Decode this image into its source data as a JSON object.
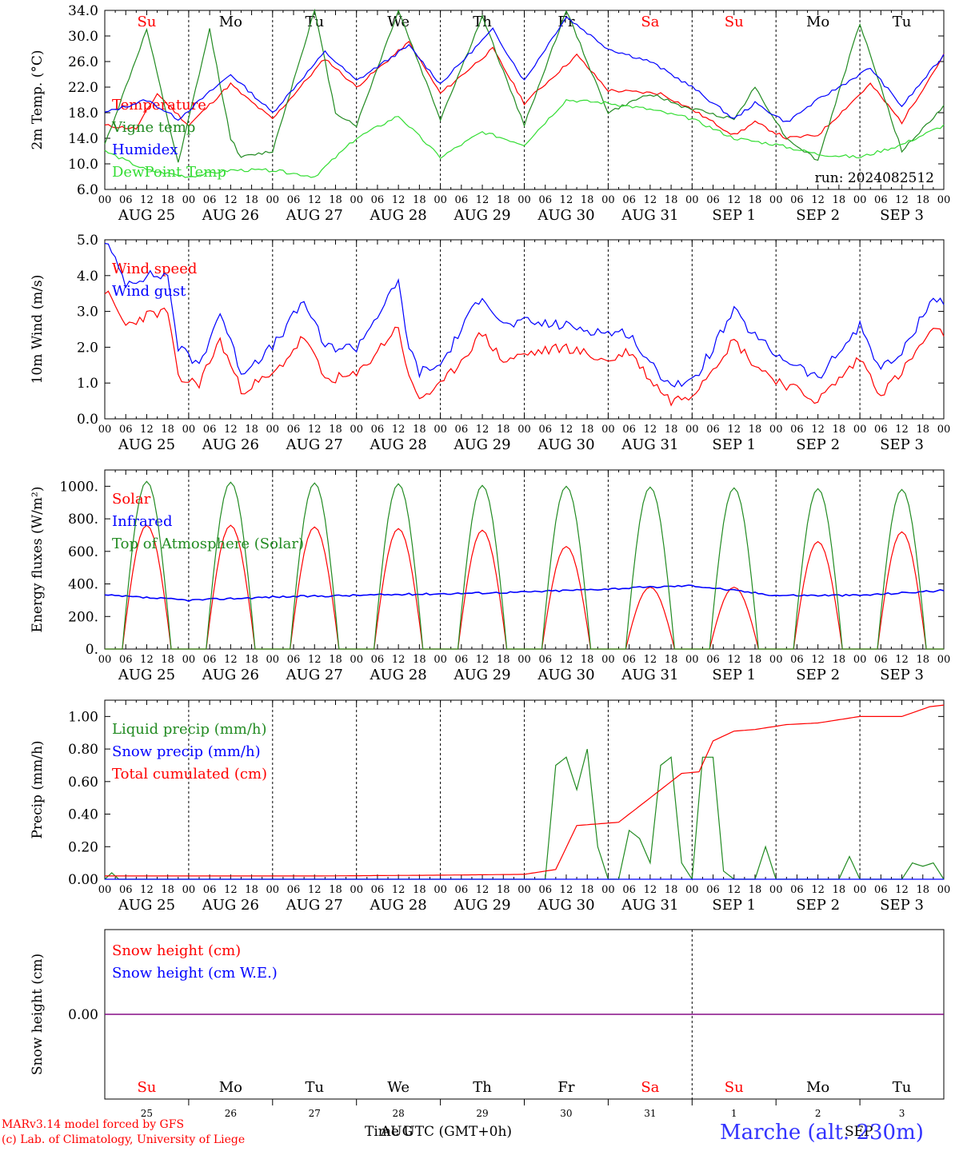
{
  "run_label": "run: 2024082512",
  "colors": {
    "red": "#ff0000",
    "green": "#228b22",
    "blue": "#0000ff",
    "lightgreen": "#33dd33",
    "purple": "#800080"
  },
  "days": {
    "weekday": [
      "Su",
      "Mo",
      "Tu",
      "We",
      "Th",
      "Fr",
      "Sa",
      "Su",
      "Mo",
      "Tu"
    ],
    "weekend_flags": [
      true,
      false,
      false,
      false,
      false,
      false,
      true,
      true,
      false,
      false
    ],
    "date_labels": [
      "AUG 25",
      "AUG 26",
      "AUG 27",
      "AUG 28",
      "AUG 29",
      "AUG 30",
      "AUG 31",
      "SEP  1",
      "SEP  2",
      "SEP  3"
    ],
    "day_numbers": [
      "25",
      "26",
      "27",
      "28",
      "29",
      "30",
      "31",
      "1",
      "2",
      "3"
    ],
    "hour_ticks": [
      "00",
      "06",
      "12",
      "18"
    ]
  },
  "chart_data": [
    {
      "type": "line",
      "ylabel": "2m Temp. (°C)",
      "ylim": [
        6.0,
        34.0
      ],
      "yticks": [
        6.0,
        10.0,
        14.0,
        18.0,
        22.0,
        26.0,
        30.0,
        34.0
      ],
      "ytick_labels": [
        "6.0",
        "10.0",
        "14.0",
        "18.0",
        "22.0",
        "26.0",
        "30.0",
        "34.0"
      ],
      "series": [
        {
          "name": "Temperature",
          "color": "red",
          "x": [
            0,
            9,
            15,
            24,
            36,
            39,
            48,
            63,
            72,
            87,
            96,
            111,
            120,
            135,
            144,
            159,
            168,
            180,
            186,
            195,
            204,
            219,
            228,
            240
          ],
          "values": [
            16,
            15.5,
            21,
            16,
            22.5,
            21,
            17,
            26.5,
            22,
            29,
            21,
            28,
            19.5,
            27,
            21.5,
            21,
            18.5,
            14.5,
            16.5,
            14,
            14.5,
            22.5,
            16.5,
            27
          ]
        },
        {
          "name": "Vigne temp",
          "color": "green",
          "x": [
            0,
            12,
            21,
            30,
            36,
            39,
            48,
            60,
            66,
            72,
            84,
            96,
            108,
            120,
            132,
            144,
            156,
            165,
            180,
            186,
            195,
            204,
            216,
            228,
            240
          ],
          "values": [
            13,
            31,
            10,
            31,
            14,
            11,
            12,
            34,
            18,
            16,
            34,
            17,
            33,
            16,
            34,
            18,
            21,
            19,
            17,
            22,
            14,
            10.5,
            32,
            12,
            19
          ]
        },
        {
          "name": "Humidex",
          "color": "blue",
          "x": [
            0,
            12,
            21,
            36,
            48,
            63,
            72,
            87,
            96,
            111,
            120,
            132,
            144,
            156,
            168,
            180,
            186,
            195,
            204,
            219,
            228,
            240
          ],
          "values": [
            18,
            20,
            17,
            24,
            18,
            27.5,
            23,
            28.5,
            22.5,
            31,
            23,
            33,
            28,
            26,
            22,
            17,
            19.5,
            16.5,
            20,
            25,
            19,
            27
          ]
        },
        {
          "name": "DewPoint Temp",
          "color": "lightgreen",
          "x": [
            0,
            12,
            24,
            36,
            48,
            60,
            72,
            84,
            96,
            108,
            120,
            132,
            144,
            156,
            168,
            180,
            192,
            204,
            216,
            228,
            240
          ],
          "values": [
            12,
            9,
            8,
            9,
            9,
            8,
            14,
            17.5,
            11,
            15,
            13,
            20,
            19.5,
            18.5,
            17,
            14,
            13,
            11.5,
            11,
            13,
            16
          ]
        }
      ]
    },
    {
      "type": "line",
      "ylabel": "10m Wind (m/s)",
      "ylim": [
        0.0,
        5.0
      ],
      "yticks": [
        0.0,
        1.0,
        2.0,
        3.0,
        4.0,
        5.0
      ],
      "ytick_labels": [
        "0.0",
        "1.0",
        "2.0",
        "3.0",
        "4.0",
        "5.0"
      ],
      "series": [
        {
          "name": "Wind speed",
          "color": "red",
          "x": [
            0,
            6,
            12,
            18,
            21,
            27,
            33,
            39,
            48,
            57,
            63,
            72,
            84,
            87,
            90,
            96,
            108,
            114,
            120,
            132,
            144,
            150,
            156,
            162,
            168,
            180,
            186,
            192,
            198,
            204,
            216,
            222,
            228,
            236,
            240
          ],
          "values": [
            3.6,
            2.6,
            2.9,
            3.0,
            1.1,
            1.0,
            2.2,
            0.8,
            1.2,
            2.3,
            1.1,
            1.2,
            2.6,
            1.1,
            0.6,
            0.9,
            2.4,
            1.6,
            1.8,
            2.0,
            1.6,
            1.9,
            1.1,
            0.5,
            0.7,
            2.2,
            1.5,
            1.1,
            0.8,
            0.5,
            1.7,
            0.7,
            1.3,
            2.4,
            2.4
          ]
        },
        {
          "name": "Wind gust",
          "color": "blue",
          "x": [
            0,
            6,
            12,
            18,
            21,
            27,
            33,
            39,
            48,
            57,
            63,
            72,
            84,
            87,
            90,
            96,
            108,
            114,
            120,
            132,
            144,
            150,
            156,
            162,
            168,
            180,
            186,
            192,
            198,
            204,
            216,
            222,
            228,
            236,
            240
          ],
          "values": [
            5.0,
            3.8,
            4.0,
            4.0,
            2.0,
            1.5,
            3.0,
            1.3,
            2.0,
            3.3,
            2.0,
            2.0,
            3.8,
            2.0,
            1.3,
            1.5,
            3.5,
            2.6,
            2.7,
            2.6,
            2.4,
            2.4,
            1.5,
            1.0,
            1.0,
            3.0,
            2.3,
            1.8,
            1.5,
            1.1,
            2.6,
            1.4,
            1.8,
            3.3,
            3.3
          ]
        }
      ]
    },
    {
      "type": "line",
      "ylabel": "Energy fluxes (W/m²)",
      "ylim": [
        0,
        1100
      ],
      "yticks": [
        0,
        200,
        400,
        600,
        800,
        1000
      ],
      "ytick_labels": [
        "0.",
        "200.",
        "400.",
        "600.",
        "800.",
        "1000."
      ],
      "series": [
        {
          "name": "Solar",
          "color": "red",
          "peaks": [
            760,
            760,
            750,
            740,
            730,
            630,
            380,
            380,
            660,
            720
          ]
        },
        {
          "name": "Infrared",
          "color": "blue",
          "x": [
            0,
            24,
            48,
            72,
            96,
            120,
            144,
            168,
            192,
            216,
            240
          ],
          "values": [
            330,
            300,
            320,
            330,
            340,
            350,
            370,
            390,
            330,
            330,
            360
          ]
        },
        {
          "name": "Top of Atmosphere (Solar)",
          "color": "green",
          "peaks": [
            1030,
            1025,
            1020,
            1015,
            1005,
            1000,
            995,
            990,
            985,
            980
          ]
        }
      ]
    },
    {
      "type": "line",
      "ylabel": "Precip (mm/h)",
      "ylim": [
        0.0,
        1.1
      ],
      "yticks": [
        0.0,
        0.2,
        0.4,
        0.6,
        0.8,
        1.0
      ],
      "ytick_labels": [
        "0.00",
        "0.20",
        "0.40",
        "0.60",
        "0.80",
        "1.00"
      ],
      "series": [
        {
          "name": "Liquid precip (mm/h)",
          "color": "green",
          "x": [
            0,
            2,
            4,
            120,
            126,
            129,
            132,
            135,
            138,
            141,
            144,
            147,
            150,
            153,
            156,
            159,
            162,
            165,
            168,
            171,
            174,
            177,
            180,
            186,
            189,
            192,
            210,
            213,
            216,
            228,
            231,
            234,
            237,
            240
          ],
          "values": [
            0,
            0.04,
            0,
            0,
            0,
            0.7,
            0.75,
            0.55,
            0.8,
            0.2,
            0,
            0,
            0.3,
            0.25,
            0.1,
            0.7,
            0.75,
            0.1,
            0,
            0.75,
            0.75,
            0.05,
            0,
            0,
            0.2,
            0,
            0,
            0.14,
            0,
            0,
            0.1,
            0.08,
            0.1,
            0
          ]
        },
        {
          "name": "Snow precip (mm/h)",
          "color": "blue",
          "x": [
            0,
            240
          ],
          "values": [
            0,
            0
          ]
        },
        {
          "name": "Total cumulated (cm)",
          "color": "red",
          "x": [
            0,
            60,
            96,
            120,
            129,
            135,
            141,
            147,
            150,
            156,
            162,
            165,
            170,
            174,
            180,
            186,
            195,
            204,
            216,
            228,
            236,
            240
          ],
          "values": [
            0.02,
            0.02,
            0.025,
            0.03,
            0.06,
            0.33,
            0.34,
            0.35,
            0.4,
            0.5,
            0.6,
            0.65,
            0.66,
            0.85,
            0.91,
            0.92,
            0.95,
            0.96,
            1.0,
            1.0,
            1.06,
            1.07
          ]
        }
      ]
    },
    {
      "type": "line",
      "ylabel": "Snow height (cm)",
      "ytick_labels": [
        "0.00"
      ],
      "series": [
        {
          "name": "Snow height (cm)",
          "color": "red",
          "x": [
            0,
            240
          ],
          "values": [
            0,
            0
          ]
        },
        {
          "name": "Snow height (cm W.E.)",
          "color": "blue",
          "x": [
            0,
            240
          ],
          "values": [
            0,
            0
          ]
        }
      ]
    }
  ],
  "footer": {
    "model": "MARv3.14 model forced by GFS",
    "credit": "(c) Lab. of Climatology, University of Liege",
    "xlabel": "Time UTC (GMT+0h)",
    "month_label_aug": "AUG",
    "month_label_sep": "SEP",
    "station": "Marche (alt. 230m)"
  }
}
